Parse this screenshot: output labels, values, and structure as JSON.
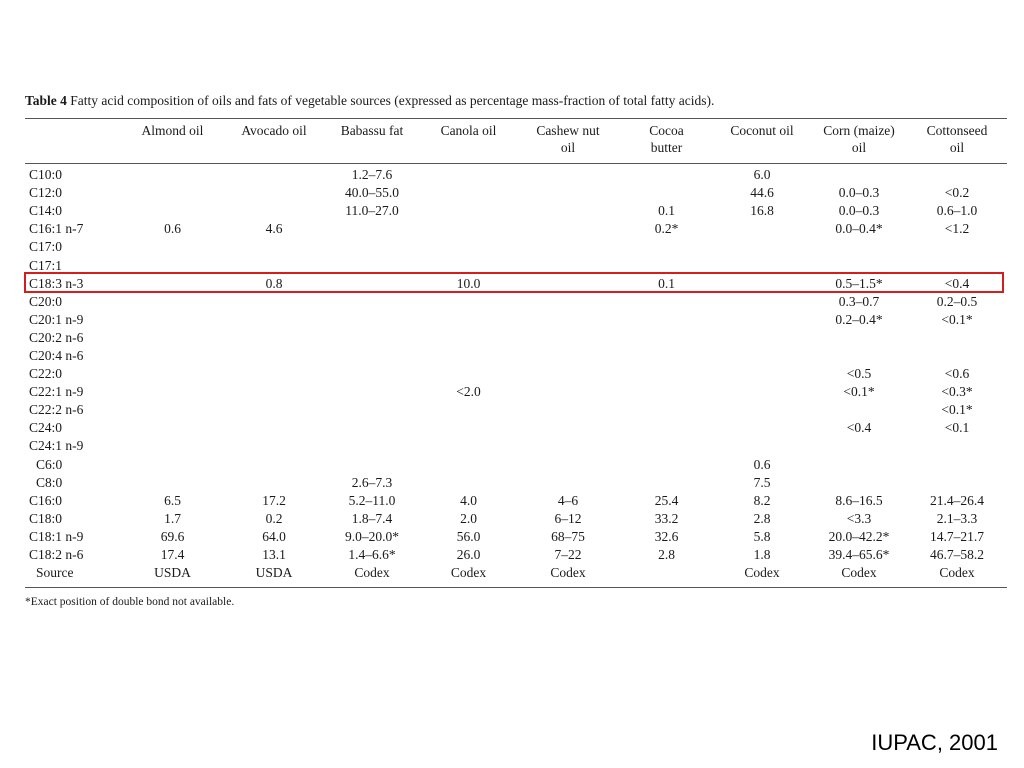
{
  "caption": {
    "label": "Table 4",
    "text": " Fatty acid composition of oils and fats of vegetable sources (expressed as percentage mass-fraction of total fatty acids)."
  },
  "columns": [
    [
      "",
      ""
    ],
    [
      "Almond oil",
      ""
    ],
    [
      "Avocado oil",
      ""
    ],
    [
      "Babassu fat",
      ""
    ],
    [
      "Canola oil",
      ""
    ],
    [
      "Cashew nut",
      "oil"
    ],
    [
      "Cocoa",
      "butter"
    ],
    [
      "Coconut oil",
      ""
    ],
    [
      "Corn (maize)",
      "oil"
    ],
    [
      "Cottonseed",
      "oil"
    ]
  ],
  "rows": [
    [
      "C10:0",
      "",
      "",
      "1.2–7.6",
      "",
      "",
      "",
      "6.0",
      "",
      ""
    ],
    [
      "C12:0",
      "",
      "",
      "40.0–55.0",
      "",
      "",
      "",
      "44.6",
      "0.0–0.3",
      "<0.2"
    ],
    [
      "C14:0",
      "",
      "",
      "11.0–27.0",
      "",
      "",
      "0.1",
      "16.8",
      "0.0–0.3",
      "0.6–1.0"
    ],
    [
      "C16:1 n-7",
      "0.6",
      "4.6",
      "",
      "",
      "",
      "0.2*",
      "",
      "0.0–0.4*",
      "<1.2"
    ],
    [
      "C17:0",
      "",
      "",
      "",
      "",
      "",
      "",
      "",
      "",
      ""
    ],
    [
      "C17:1",
      "",
      "",
      "",
      "",
      "",
      "",
      "",
      "",
      ""
    ],
    [
      "C18:3 n-3",
      "",
      "0.8",
      "",
      "10.0",
      "",
      "0.1",
      "",
      "0.5–1.5*",
      "<0.4"
    ],
    [
      "C20:0",
      "",
      "",
      "",
      "",
      "",
      "",
      "",
      "0.3–0.7",
      "0.2–0.5"
    ],
    [
      "C20:1 n-9",
      "",
      "",
      "",
      "",
      "",
      "",
      "",
      "0.2–0.4*",
      "<0.1*"
    ],
    [
      "C20:2 n-6",
      "",
      "",
      "",
      "",
      "",
      "",
      "",
      "",
      ""
    ],
    [
      "C20:4 n-6",
      "",
      "",
      "",
      "",
      "",
      "",
      "",
      "",
      ""
    ],
    [
      "C22:0",
      "",
      "",
      "",
      "",
      "",
      "",
      "",
      "<0.5",
      "<0.6"
    ],
    [
      "C22:1 n-9",
      "",
      "",
      "",
      "<2.0",
      "",
      "",
      "",
      "<0.1*",
      "<0.3*"
    ],
    [
      "C22:2 n-6",
      "",
      "",
      "",
      "",
      "",
      "",
      "",
      "",
      "<0.1*"
    ],
    [
      "C24:0",
      "",
      "",
      "",
      "",
      "",
      "",
      "",
      "<0.4",
      "<0.1"
    ],
    [
      "C24:1 n-9",
      "",
      "",
      "",
      "",
      "",
      "",
      "",
      "",
      ""
    ],
    [
      "C6:0",
      "",
      "",
      "",
      "",
      "",
      "",
      "0.6",
      "",
      ""
    ],
    [
      "C8:0",
      "",
      "",
      "2.6–7.3",
      "",
      "",
      "",
      "7.5",
      "",
      ""
    ],
    [
      "C16:0",
      "6.5",
      "17.2",
      "5.2–11.0",
      "4.0",
      "4–6",
      "25.4",
      "8.2",
      "8.6–16.5",
      "21.4–26.4"
    ],
    [
      "C18:0",
      "1.7",
      "0.2",
      "1.8–7.4",
      "2.0",
      "6–12",
      "33.2",
      "2.8",
      "<3.3",
      "2.1–3.3"
    ],
    [
      "C18:1 n-9",
      "69.6",
      "64.0",
      "9.0–20.0*",
      "56.0",
      "68–75",
      "32.6",
      "5.8",
      "20.0–42.2*",
      "14.7–21.7"
    ],
    [
      "C18:2 n-6",
      "17.4",
      "13.1",
      "1.4–6.6*",
      "26.0",
      "7–22",
      "2.8",
      "1.8",
      "39.4–65.6*",
      "46.7–58.2"
    ],
    [
      "Source",
      "USDA",
      "USDA",
      "Codex",
      "Codex",
      "Codex",
      "",
      "Codex",
      "Codex",
      "Codex"
    ]
  ],
  "indented_rows": [
    "C6:0",
    "C8:0",
    "Source"
  ],
  "highlighted_row": "C18:3 n-3",
  "highlight_color": "#d41e1e",
  "footnote": "*Exact position of double bond not available.",
  "credit": "IUPAC, 2001"
}
